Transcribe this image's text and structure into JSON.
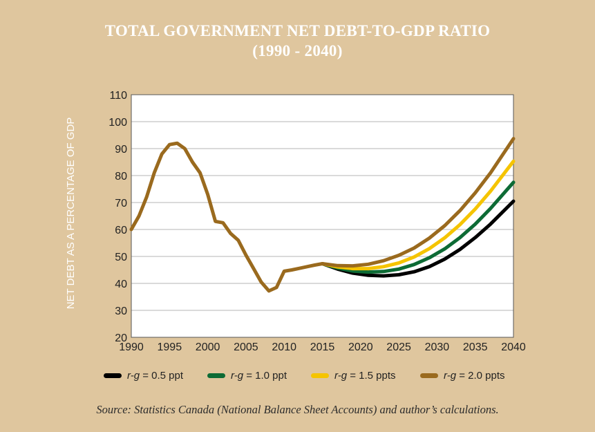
{
  "title": {
    "line1": "TOTAL GOVERNMENT NET DEBT-TO-GDP RATIO",
    "line2": "(1990 - 2040)"
  },
  "source": "Source: Statistics Canada (National Balance Sheet Accounts) and author’s calculations.",
  "colors": {
    "background": "#dfc69e",
    "plot_background": "#ffffff",
    "historical": "#9a6a1e"
  },
  "chart_data": {
    "type": "line",
    "title": "TOTAL GOVERNMENT NET DEBT-TO-GDP RATIO (1990 - 2040)",
    "ylabel": "NET DEBT AS A PERCENTAGE OF GDP",
    "xlabel": "",
    "xlim": [
      1990,
      2040
    ],
    "ylim": [
      20,
      110
    ],
    "xticks": [
      1990,
      1995,
      2000,
      2005,
      2010,
      2015,
      2020,
      2025,
      2030,
      2035,
      2040
    ],
    "yticks": [
      20,
      30,
      40,
      50,
      60,
      70,
      80,
      90,
      100,
      110
    ],
    "grid": "horizontal",
    "legend_position": "bottom",
    "historical": {
      "color": "#9a6a1e",
      "x": [
        1990,
        1991,
        1992,
        1993,
        1994,
        1995,
        1996,
        1997,
        1998,
        1999,
        2000,
        2001,
        2002,
        2003,
        2004,
        2005,
        2006,
        2007,
        2008,
        2009,
        2010,
        2011,
        2012,
        2013,
        2014,
        2015
      ],
      "y": [
        60,
        65,
        72,
        81,
        88,
        91.5,
        92,
        90,
        85,
        81,
        73,
        63,
        62.5,
        58.5,
        56,
        50.5,
        45.5,
        40.5,
        37.2,
        38.5,
        44.5,
        45,
        45.6,
        46.2,
        46.8,
        47.3
      ]
    },
    "series": [
      {
        "name_prefix": "r-g",
        "name_suffix": " = 0.5 ppt",
        "color": "#000000",
        "x": [
          2015,
          2017,
          2019,
          2021,
          2023,
          2025,
          2027,
          2029,
          2031,
          2033,
          2035,
          2037,
          2040
        ],
        "y": [
          47.3,
          45.3,
          43.8,
          43.0,
          42.8,
          43.2,
          44.3,
          46.2,
          49.0,
          52.6,
          57.0,
          62.0,
          70.5
        ]
      },
      {
        "name_prefix": "r-g",
        "name_suffix": " = 1.0 ppt",
        "color": "#0d6b35",
        "x": [
          2015,
          2017,
          2019,
          2021,
          2023,
          2025,
          2027,
          2029,
          2031,
          2033,
          2035,
          2037,
          2040
        ],
        "y": [
          47.3,
          45.7,
          44.6,
          44.2,
          44.4,
          45.3,
          47.0,
          49.5,
          52.8,
          57.0,
          62.0,
          67.8,
          77.5
        ]
      },
      {
        "name_prefix": "r-g",
        "name_suffix": " = 1.5 ppts",
        "color": "#f5c400",
        "x": [
          2015,
          2017,
          2019,
          2021,
          2023,
          2025,
          2027,
          2029,
          2031,
          2033,
          2035,
          2037,
          2040
        ],
        "y": [
          47.3,
          46.1,
          45.5,
          45.5,
          46.2,
          47.6,
          49.8,
          52.9,
          56.9,
          61.8,
          67.6,
          74.2,
          85.3
        ]
      },
      {
        "name_prefix": "r-g",
        "name_suffix": " = 2.0 ppts",
        "color": "#9a6a1e",
        "x": [
          2015,
          2017,
          2019,
          2021,
          2023,
          2025,
          2027,
          2029,
          2031,
          2033,
          2035,
          2037,
          2040
        ],
        "y": [
          47.3,
          46.6,
          46.5,
          47.1,
          48.4,
          50.4,
          53.1,
          56.8,
          61.4,
          67.0,
          73.6,
          81.0,
          93.7
        ]
      }
    ]
  }
}
